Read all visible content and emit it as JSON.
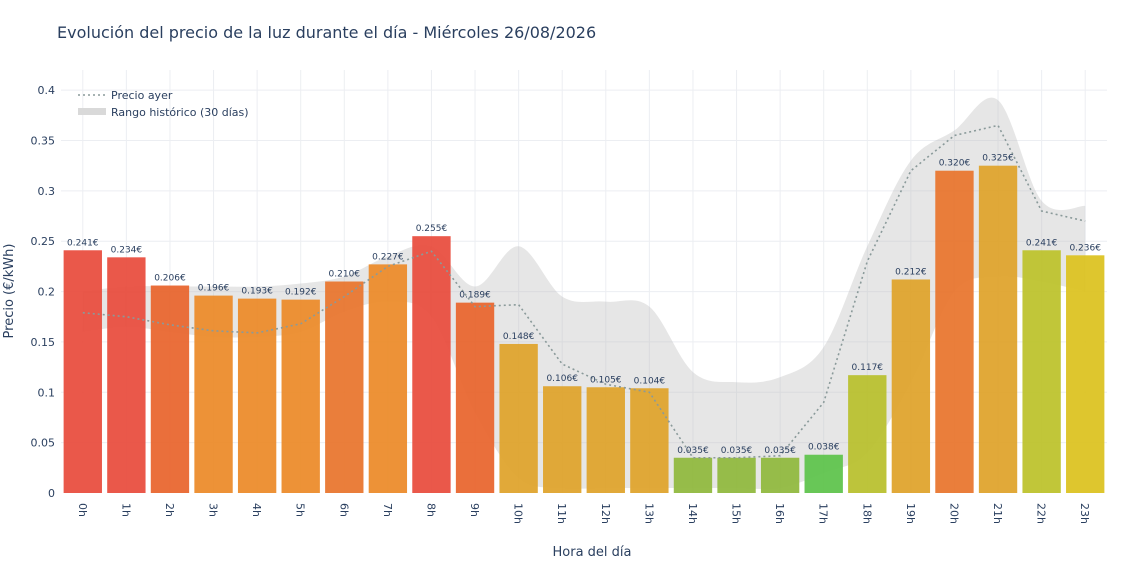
{
  "chart_data": {
    "type": "bar",
    "title": "Evolución del precio de la luz durante el día - Miércoles 26/08/2026",
    "xlabel": "Hora del día",
    "ylabel": "Precio (€/kWh)",
    "ylim": [
      0,
      0.42
    ],
    "yticks": [
      0,
      0.05,
      0.1,
      0.15,
      0.2,
      0.25,
      0.3,
      0.35,
      0.4
    ],
    "ytick_labels": [
      "0",
      "0.05",
      "0.1",
      "0.15",
      "0.2",
      "0.25",
      "0.3",
      "0.35",
      "0.4"
    ],
    "grid": true,
    "legend_position": "top-left",
    "categories": [
      "0h",
      "1h",
      "2h",
      "3h",
      "4h",
      "5h",
      "6h",
      "7h",
      "8h",
      "9h",
      "10h",
      "11h",
      "12h",
      "13h",
      "14h",
      "15h",
      "16h",
      "17h",
      "18h",
      "19h",
      "20h",
      "21h",
      "22h",
      "23h"
    ],
    "values": [
      0.241,
      0.234,
      0.206,
      0.196,
      0.193,
      0.192,
      0.21,
      0.227,
      0.255,
      0.189,
      0.148,
      0.106,
      0.105,
      0.104,
      0.035,
      0.035,
      0.035,
      0.038,
      0.117,
      0.212,
      0.32,
      0.325,
      0.241,
      0.236
    ],
    "labels": [
      "0.241€",
      "0.234€",
      "0.206€",
      "0.196€",
      "0.193€",
      "0.192€",
      "0.210€",
      "0.227€",
      "0.255€",
      "0.189€",
      "0.148€",
      "0.106€",
      "0.105€",
      "0.104€",
      "0.035€",
      "0.035€",
      "0.035€",
      "0.038€",
      "0.117€",
      "0.212€",
      "0.320€",
      "0.325€",
      "0.241€",
      "0.236€"
    ],
    "bar_colors": [
      "#e84b3c",
      "#e84b3c",
      "#e8642c",
      "#ec8a28",
      "#ec8a28",
      "#ec8a28",
      "#e8742c",
      "#ec8a28",
      "#e84b3c",
      "#e8642c",
      "#dfa22a",
      "#dfa22a",
      "#dfa22a",
      "#dfa22a",
      "#8fb83c",
      "#8fb83c",
      "#8fb83c",
      "#5cc34a",
      "#b8c02c",
      "#dfa22a",
      "#e8742c",
      "#dfa22a",
      "#bcc22a",
      "#dcc21e"
    ],
    "series": [
      {
        "name": "Precio ayer",
        "style": "dotted",
        "color": "#8a9a9a",
        "values": [
          0.179,
          0.175,
          0.167,
          0.161,
          0.159,
          0.168,
          0.195,
          0.225,
          0.24,
          0.185,
          0.187,
          0.128,
          0.108,
          0.1,
          0.035,
          0.035,
          0.037,
          0.09,
          0.23,
          0.32,
          0.355,
          0.365,
          0.28,
          0.27
        ]
      },
      {
        "name": "Rango histórico (30 días)",
        "style": "band",
        "color": "#cccccc",
        "upper": [
          0.2,
          0.205,
          0.205,
          0.205,
          0.205,
          0.208,
          0.215,
          0.235,
          0.245,
          0.205,
          0.245,
          0.195,
          0.19,
          0.185,
          0.12,
          0.11,
          0.115,
          0.145,
          0.245,
          0.33,
          0.36,
          0.39,
          0.29,
          0.285
        ],
        "lower": [
          0.16,
          0.165,
          0.16,
          0.155,
          0.155,
          0.16,
          0.18,
          0.19,
          0.175,
          0.08,
          0.015,
          0.005,
          0.005,
          0.005,
          0.005,
          0.005,
          0.005,
          0.02,
          0.04,
          0.11,
          0.2,
          0.215,
          0.21,
          0.2
        ]
      }
    ]
  }
}
